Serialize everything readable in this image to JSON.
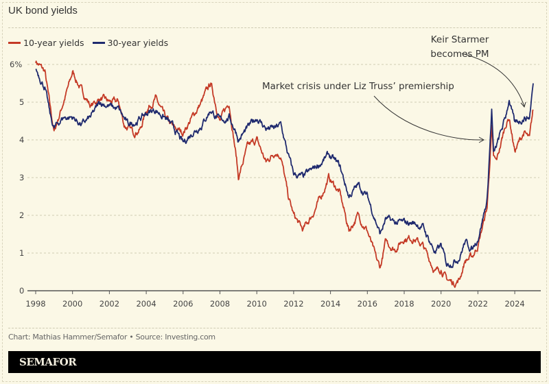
{
  "chart_data": {
    "type": "line",
    "title": "UK bond yields",
    "xlabel": "",
    "ylabel": "",
    "xlim": [
      1998,
      2025.4
    ],
    "ylim": [
      0,
      6
    ],
    "y_ticks": [
      "0",
      "1",
      "2",
      "3",
      "4",
      "5",
      "6%"
    ],
    "x_ticks": [
      "1998",
      "2000",
      "2002",
      "2004",
      "2006",
      "2008",
      "2010",
      "2012",
      "2014",
      "2016",
      "2018",
      "2020",
      "2022",
      "2024"
    ],
    "grid": "horizontal dashed",
    "legend_placement": "top-left",
    "series": [
      {
        "name": "10-year yields",
        "color": "#c43a26",
        "x": [
          1998.0,
          1998.5,
          1998.8,
          1999.0,
          1999.5,
          1999.9,
          2000.0,
          2000.5,
          2001.0,
          2001.5,
          2002.0,
          2002.5,
          2002.8,
          2003.3,
          2003.7,
          2004.0,
          2004.5,
          2005.0,
          2005.5,
          2006.0,
          2006.5,
          2007.0,
          2007.5,
          2008.0,
          2008.5,
          2008.9,
          2009.0,
          2009.5,
          2010.0,
          2010.5,
          2011.0,
          2011.3,
          2011.7,
          2012.0,
          2012.5,
          2013.0,
          2013.5,
          2013.9,
          2014.5,
          2015.0,
          2015.5,
          2016.0,
          2016.5,
          2016.7,
          2017.0,
          2017.5,
          2018.0,
          2018.5,
          2019.0,
          2019.7,
          2020.0,
          2020.3,
          2020.7,
          2021.0,
          2021.3,
          2021.7,
          2022.0,
          2022.5,
          2022.75,
          2022.85,
          2023.0,
          2023.5,
          2023.7,
          2024.0,
          2024.5,
          2024.8,
          2025.0
        ],
        "values": [
          6.1,
          5.8,
          4.8,
          4.2,
          5.0,
          5.6,
          5.8,
          5.3,
          4.9,
          5.1,
          5.0,
          5.0,
          4.4,
          4.2,
          4.3,
          4.8,
          5.1,
          4.6,
          4.3,
          4.2,
          4.6,
          5.0,
          5.5,
          4.5,
          5.0,
          3.5,
          3.0,
          3.8,
          4.0,
          3.4,
          3.7,
          3.6,
          2.5,
          2.0,
          1.6,
          2.0,
          2.5,
          3.0,
          2.6,
          1.6,
          2.0,
          1.6,
          0.8,
          0.6,
          1.3,
          1.1,
          1.4,
          1.4,
          1.2,
          0.5,
          0.6,
          0.3,
          0.2,
          0.3,
          0.8,
          0.9,
          1.2,
          2.2,
          4.3,
          3.5,
          3.4,
          4.4,
          4.6,
          3.7,
          4.2,
          4.0,
          4.8
        ]
      },
      {
        "name": "30-year yields",
        "color": "#1f2a6e",
        "x": [
          1998.0,
          1998.5,
          1998.8,
          1999.0,
          1999.5,
          2000.0,
          2000.5,
          2001.0,
          2001.5,
          2002.0,
          2002.5,
          2003.0,
          2003.5,
          2004.0,
          2004.5,
          2005.0,
          2005.5,
          2006.0,
          2006.5,
          2007.0,
          2007.5,
          2008.0,
          2008.5,
          2008.9,
          2009.0,
          2009.5,
          2010.0,
          2010.5,
          2011.0,
          2011.3,
          2011.7,
          2012.0,
          2012.5,
          2013.0,
          2013.5,
          2013.9,
          2014.5,
          2015.0,
          2015.5,
          2016.0,
          2016.5,
          2016.7,
          2017.0,
          2017.5,
          2018.0,
          2018.5,
          2019.0,
          2019.7,
          2020.0,
          2020.3,
          2020.7,
          2021.0,
          2021.3,
          2021.7,
          2022.0,
          2022.5,
          2022.75,
          2022.85,
          2023.0,
          2023.5,
          2023.7,
          2024.0,
          2024.5,
          2024.8,
          2025.0
        ],
        "values": [
          5.9,
          5.4,
          4.6,
          4.3,
          4.6,
          4.6,
          4.4,
          4.6,
          5.0,
          4.9,
          4.8,
          4.4,
          4.5,
          4.7,
          4.8,
          4.6,
          4.3,
          3.9,
          4.2,
          4.4,
          4.8,
          4.5,
          4.6,
          4.2,
          4.0,
          4.3,
          4.6,
          4.3,
          4.3,
          4.4,
          3.6,
          3.1,
          3.0,
          3.2,
          3.4,
          3.6,
          3.3,
          2.5,
          2.8,
          2.5,
          1.8,
          1.5,
          1.9,
          1.8,
          1.8,
          1.8,
          1.7,
          1.0,
          1.2,
          0.7,
          0.8,
          0.9,
          1.3,
          1.1,
          1.4,
          2.4,
          4.8,
          3.6,
          3.8,
          4.6,
          5.1,
          4.4,
          4.6,
          4.6,
          5.5
        ]
      }
    ],
    "annotations": [
      {
        "lines": [
          "Keir Starmer",
          "becomes PM"
        ],
        "x": 2024.5
      },
      {
        "lines": [
          "Market crisis under Liz Truss’ premiership"
        ],
        "x": 2022.75
      }
    ]
  },
  "footer": {
    "source": "Chart: Mathias Hammer/Semafor • Source: Investing.com",
    "brand": "SEMAFOR"
  }
}
